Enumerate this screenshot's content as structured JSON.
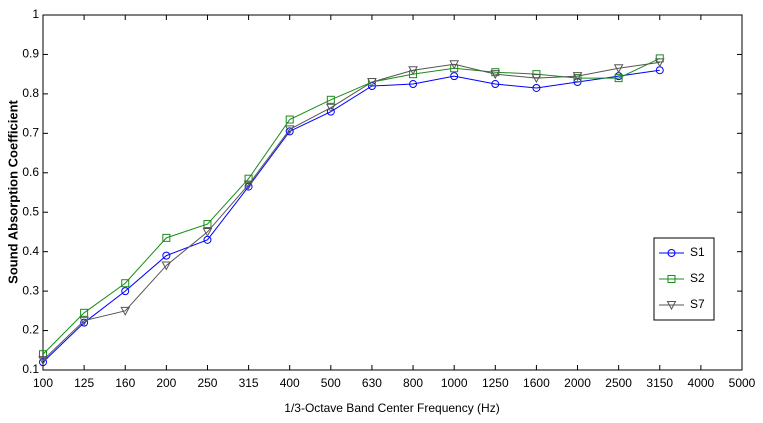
{
  "chart_data": {
    "type": "line",
    "x_label": "1/3-Octave Band Center Frequency (Hz)",
    "y_label": "Sound Absorption Coefficient",
    "categories": [
      "100",
      "125",
      "160",
      "200",
      "250",
      "315",
      "400",
      "500",
      "630",
      "800",
      "1000",
      "1250",
      "1600",
      "2000",
      "2500",
      "3150",
      "4000",
      "5000"
    ],
    "series": [
      {
        "name": "S1",
        "color": "#0000ff",
        "marker": "circle",
        "values": [
          0.12,
          0.22,
          0.3,
          0.39,
          0.43,
          0.565,
          0.705,
          0.755,
          0.82,
          0.825,
          0.845,
          0.825,
          0.815,
          0.83,
          0.845,
          0.86,
          null,
          null
        ]
      },
      {
        "name": "S2",
        "color": "#1a8c1a",
        "marker": "square",
        "values": [
          0.14,
          0.245,
          0.32,
          0.435,
          0.47,
          0.585,
          0.735,
          0.785,
          0.83,
          0.85,
          0.865,
          0.855,
          0.85,
          0.84,
          0.84,
          0.89,
          null,
          null
        ]
      },
      {
        "name": "S7",
        "color": "#555555",
        "marker": "triangle-down",
        "values": [
          0.125,
          0.225,
          0.25,
          0.365,
          0.45,
          0.57,
          0.71,
          0.765,
          0.83,
          0.86,
          0.875,
          0.85,
          0.84,
          0.845,
          0.865,
          0.88,
          null,
          null
        ]
      }
    ],
    "ylim": [
      0.1,
      1
    ],
    "yticks": [
      0.1,
      0.2,
      0.3,
      0.4,
      0.5,
      0.6,
      0.7,
      0.8,
      0.9,
      1
    ],
    "grid": false,
    "legend_position": "lower right"
  }
}
